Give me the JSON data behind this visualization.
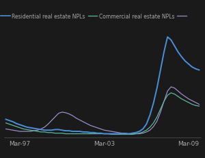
{
  "legend_labels": [
    "Residential real estate NPLs",
    "Commercial real estate NPLs"
  ],
  "line_colors": [
    "#4a90d9",
    "#5db8a0",
    "#9b8ec4"
  ],
  "x_ticks": [
    "Mar-97",
    "Mar-03",
    "Mar-09"
  ],
  "background_color": "#1a1a1a",
  "grid_color": "#3a3a3a",
  "text_color": "#aaaaaa",
  "figsize": [
    3.0,
    2.32
  ],
  "dpi": 100,
  "res": [
    3.8,
    3.6,
    3.4,
    3.1,
    2.9,
    2.7,
    2.5,
    2.4,
    2.3,
    2.2,
    2.1,
    2.0,
    2.0,
    2.0,
    2.1,
    2.1,
    2.0,
    1.9,
    1.9,
    1.8,
    1.8,
    1.8,
    1.7,
    1.7,
    1.6,
    1.6,
    1.5,
    1.5,
    1.4,
    1.4,
    1.4,
    1.4,
    1.4,
    1.4,
    1.4,
    1.4,
    1.5,
    1.6,
    1.8,
    2.2,
    3.0,
    4.5,
    6.5,
    9.0,
    12.0,
    15.0,
    17.5,
    17.0,
    16.0,
    15.0,
    14.2,
    13.5,
    13.0,
    12.5,
    12.2,
    12.0
  ],
  "com": [
    3.2,
    3.0,
    2.8,
    2.6,
    2.4,
    2.2,
    2.1,
    2.0,
    1.9,
    1.8,
    1.7,
    1.7,
    1.6,
    1.6,
    1.5,
    1.5,
    1.5,
    1.4,
    1.4,
    1.4,
    1.4,
    1.4,
    1.4,
    1.4,
    1.4,
    1.4,
    1.4,
    1.4,
    1.4,
    1.4,
    1.3,
    1.3,
    1.3,
    1.3,
    1.3,
    1.3,
    1.3,
    1.4,
    1.5,
    1.7,
    2.0,
    2.5,
    3.2,
    4.2,
    5.5,
    6.8,
    7.8,
    8.2,
    8.0,
    7.6,
    7.2,
    6.9,
    6.6,
    6.3,
    6.1,
    6.0
  ],
  "pur": [
    2.2,
    2.1,
    2.0,
    1.9,
    1.8,
    1.8,
    1.8,
    1.8,
    1.9,
    2.0,
    2.2,
    2.5,
    3.0,
    3.6,
    4.2,
    4.8,
    5.0,
    4.9,
    4.7,
    4.4,
    4.0,
    3.7,
    3.4,
    3.1,
    2.8,
    2.6,
    2.4,
    2.2,
    2.0,
    1.9,
    1.8,
    1.7,
    1.6,
    1.5,
    1.5,
    1.4,
    1.4,
    1.4,
    1.4,
    1.5,
    1.7,
    2.0,
    2.6,
    3.5,
    5.0,
    6.8,
    8.5,
    9.2,
    9.0,
    8.5,
    8.0,
    7.6,
    7.2,
    6.9,
    6.6,
    6.3
  ]
}
